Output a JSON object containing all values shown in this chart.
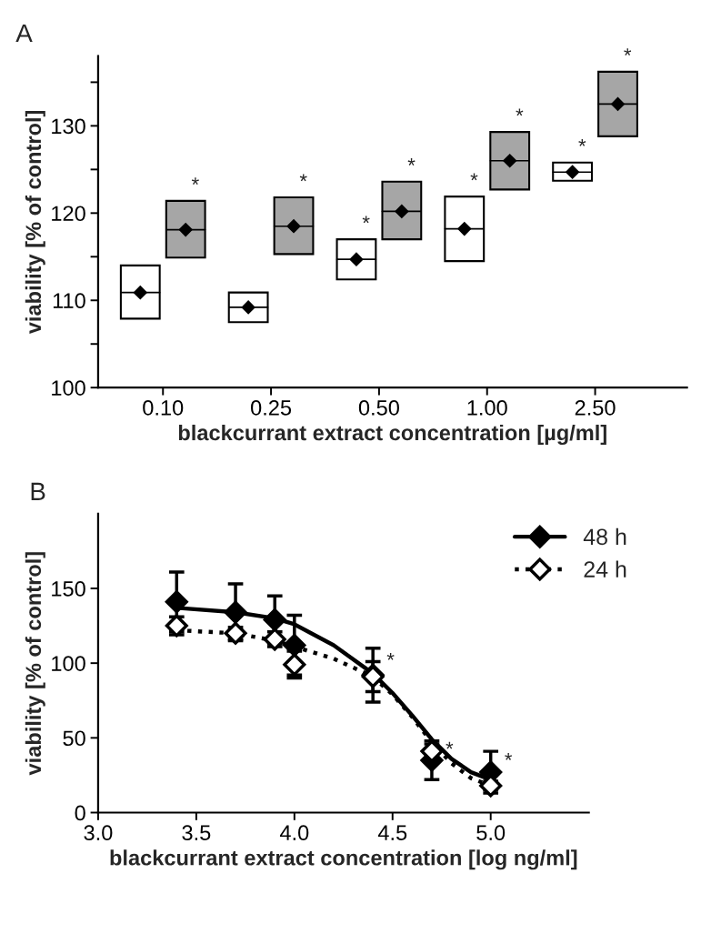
{
  "chart_data": [
    {
      "type": "box",
      "title": "A",
      "categories": [
        "0.10",
        "0.25",
        "0.50",
        "1.00",
        "2.50"
      ],
      "xlabel": "blackcurrant extract concentration [µg/ml]",
      "ylabel": "viability [% of control]",
      "ylim": [
        100,
        138
      ],
      "yticks": [
        100,
        {
          "value": 105,
          "label": null
        },
        110,
        {
          "value": 115,
          "label": null
        },
        120,
        {
          "value": 125,
          "label": null
        },
        130,
        {
          "value": 135,
          "label": null
        }
      ],
      "grid": false,
      "marker": "diamond",
      "series": [
        {
          "color": "#ffffff",
          "value_labels": [
            null,
            null,
            "*",
            "*",
            "*"
          ],
          "boxes": [
            {
              "low": 107.9,
              "q1": 107.9,
              "median": 110.9,
              "q3": 114.0,
              "high": 114.0,
              "mean": 110.9
            },
            {
              "low": 107.5,
              "q1": 107.5,
              "median": 109.2,
              "q3": 110.9,
              "high": 110.9,
              "mean": 109.2
            },
            {
              "low": 112.4,
              "q1": 112.4,
              "median": 114.7,
              "q3": 117.0,
              "high": 117.0,
              "mean": 114.7
            },
            {
              "low": 114.5,
              "q1": 114.5,
              "median": 118.2,
              "q3": 121.9,
              "high": 121.9,
              "mean": 118.2
            },
            {
              "low": 123.7,
              "q1": 123.7,
              "median": 124.7,
              "q3": 125.8,
              "high": 125.8,
              "mean": 124.7
            }
          ]
        },
        {
          "color": "#a6a6a6",
          "value_labels": [
            "*",
            "*",
            "*",
            "*",
            "*"
          ],
          "boxes": [
            {
              "low": 114.9,
              "q1": 114.9,
              "median": 118.1,
              "q3": 121.4,
              "high": 121.4,
              "mean": 118.1
            },
            {
              "low": 115.3,
              "q1": 115.3,
              "median": 118.5,
              "q3": 121.8,
              "high": 121.8,
              "mean": 118.5
            },
            {
              "low": 117.0,
              "q1": 117.0,
              "median": 120.2,
              "q3": 123.6,
              "high": 123.6,
              "mean": 120.2
            },
            {
              "low": 122.7,
              "q1": 122.7,
              "median": 126.0,
              "q3": 129.3,
              "high": 129.3,
              "mean": 126.0
            },
            {
              "low": 128.8,
              "q1": 128.8,
              "median": 132.5,
              "q3": 136.2,
              "high": 136.2,
              "mean": 132.5
            }
          ]
        }
      ]
    },
    {
      "type": "scatter",
      "title": "B",
      "xlabel": "blackcurrant extract concentration [log ng/ml]",
      "ylabel": "viability [% of control]",
      "xlim": [
        3.0,
        5.5
      ],
      "xticks": [
        {
          "value": 3.0,
          "label": "3.0"
        },
        3.5,
        {
          "value": 4.0,
          "label": "4.0"
        },
        4.5,
        {
          "value": 5.0,
          "label": "5.0"
        }
      ],
      "ylim": [
        0,
        200
      ],
      "yticks": [
        0,
        50,
        100,
        150
      ],
      "grid": false,
      "legend": "top right",
      "series": [
        {
          "name": "48 h",
          "color": "#000000",
          "marker": "diamond",
          "x": [
            3.4,
            3.7,
            3.9,
            4.0,
            4.4,
            4.7,
            5.0
          ],
          "values": [
            141,
            134,
            129,
            112,
            92,
            35,
            27
          ],
          "errors": [
            20,
            19,
            16,
            20,
            18,
            13,
            14
          ],
          "value_labels": [
            null,
            null,
            null,
            null,
            "*",
            "*",
            "*"
          ]
        },
        {
          "name": "24 h",
          "color": "#ffffff",
          "marker": "diamond",
          "x": [
            3.4,
            3.7,
            3.9,
            4.0,
            4.4,
            4.7,
            5.0
          ],
          "values": [
            125,
            120,
            116,
            99,
            91,
            41,
            18
          ],
          "errors": [
            6,
            4,
            5,
            9,
            10,
            5,
            3
          ]
        },
        {
          "type": "line",
          "color": "#000000",
          "line_style": "solid",
          "marker": "none",
          "x": [
            3.4,
            3.7,
            3.9,
            4.0,
            4.2,
            4.4,
            4.5,
            4.6,
            4.7,
            4.8,
            4.9,
            5.0
          ],
          "values": [
            137,
            134,
            130,
            126,
            112,
            93,
            80,
            65,
            49,
            36,
            27,
            22
          ]
        },
        {
          "type": "line",
          "color": "#000000",
          "line_style": "dotted",
          "marker": "none",
          "x": [
            3.4,
            3.7,
            3.9,
            4.0,
            4.2,
            4.4,
            4.5,
            4.6,
            4.7,
            4.8,
            4.9,
            5.0
          ],
          "values": [
            122,
            120,
            115,
            111,
            103,
            91,
            79,
            64,
            47,
            33,
            23,
            18
          ]
        }
      ]
    }
  ]
}
